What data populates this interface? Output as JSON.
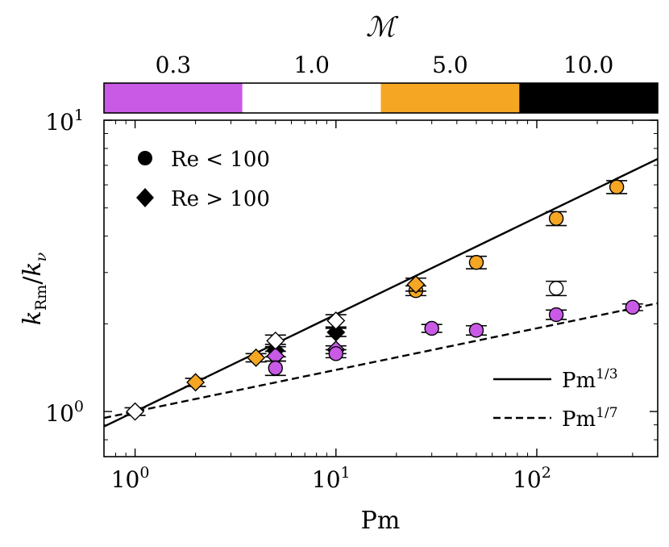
{
  "chart_data": {
    "type": "scatter",
    "title": "",
    "colorbar": {
      "title": "ℳ",
      "categories": [
        "0.3",
        "1.0",
        "5.0",
        "10.0"
      ],
      "colors": [
        "#c85ae6",
        "#ffffff",
        "#f5a623",
        "#000000"
      ]
    },
    "xlabel": "Pm",
    "ylabel_main": "k",
    "ylabel_sub_num": "Rm",
    "ylabel_sub_den": "ν",
    "xscale": "log",
    "yscale": "log",
    "xlim": [
      0.7,
      400
    ],
    "ylim": [
      0.7,
      10
    ],
    "x_ticks": [
      {
        "value": 1,
        "base": "10",
        "exp": "0"
      },
      {
        "value": 10,
        "base": "10",
        "exp": "1"
      },
      {
        "value": 100,
        "base": "10",
        "exp": "2"
      }
    ],
    "y_ticks": [
      {
        "value": 1,
        "base": "10",
        "exp": "0"
      },
      {
        "value": 10,
        "base": "10",
        "exp": "1"
      }
    ],
    "marker_legend": [
      {
        "shape": "circle",
        "label": "Re < 100"
      },
      {
        "shape": "diamond",
        "label": "Re > 100"
      }
    ],
    "line_legend": [
      {
        "style": "solid",
        "label_base": "Pm",
        "label_exp": "1/3",
        "exponent": 0.3333,
        "coef": 1.0
      },
      {
        "style": "dashed",
        "label_base": "Pm",
        "label_exp": "1/7",
        "exponent": 0.142857,
        "coef": 1.0
      }
    ],
    "points": [
      {
        "x": 1,
        "y": 1.0,
        "err": 0.03,
        "shape": "diamond",
        "mach": "1.0"
      },
      {
        "x": 2,
        "y": 1.26,
        "err": 0.04,
        "shape": "diamond",
        "mach": "5.0"
      },
      {
        "x": 4,
        "y": 1.53,
        "err": 0.05,
        "shape": "diamond",
        "mach": "5.0"
      },
      {
        "x": 5,
        "y": 1.62,
        "err": 0.08,
        "shape": "diamond",
        "mach": "10.0"
      },
      {
        "x": 5,
        "y": 1.55,
        "err": 0.06,
        "shape": "diamond",
        "mach": "0.3"
      },
      {
        "x": 5,
        "y": 1.75,
        "err": 0.08,
        "shape": "diamond",
        "mach": "1.0"
      },
      {
        "x": 5,
        "y": 1.41,
        "err": 0.08,
        "shape": "circle",
        "mach": "0.3"
      },
      {
        "x": 10,
        "y": 1.87,
        "err": 0.06,
        "shape": "diamond",
        "mach": "10.0"
      },
      {
        "x": 10,
        "y": 1.63,
        "err": 0.05,
        "shape": "diamond",
        "mach": "0.3"
      },
      {
        "x": 10,
        "y": 2.05,
        "err": 0.1,
        "shape": "diamond",
        "mach": "1.0"
      },
      {
        "x": 10,
        "y": 1.58,
        "err": 0.05,
        "shape": "circle",
        "mach": "0.3"
      },
      {
        "x": 25,
        "y": 2.6,
        "err": 0.1,
        "shape": "circle",
        "mach": "5.0"
      },
      {
        "x": 25,
        "y": 2.73,
        "err": 0.14,
        "shape": "diamond",
        "mach": "5.0"
      },
      {
        "x": 30,
        "y": 1.93,
        "err": 0.06,
        "shape": "circle",
        "mach": "0.3"
      },
      {
        "x": 50,
        "y": 3.25,
        "err": 0.16,
        "shape": "circle",
        "mach": "5.0"
      },
      {
        "x": 50,
        "y": 1.9,
        "err": 0.07,
        "shape": "circle",
        "mach": "0.3"
      },
      {
        "x": 125,
        "y": 4.6,
        "err": 0.25,
        "shape": "circle",
        "mach": "5.0"
      },
      {
        "x": 125,
        "y": 2.65,
        "err": 0.15,
        "shape": "circle",
        "mach": "1.0"
      },
      {
        "x": 125,
        "y": 2.15,
        "err": 0.08,
        "shape": "circle",
        "mach": "0.3"
      },
      {
        "x": 250,
        "y": 5.9,
        "err": 0.3,
        "shape": "circle",
        "mach": "5.0"
      },
      {
        "x": 300,
        "y": 2.28,
        "err": 0.06,
        "shape": "circle",
        "mach": "0.3"
      }
    ]
  }
}
